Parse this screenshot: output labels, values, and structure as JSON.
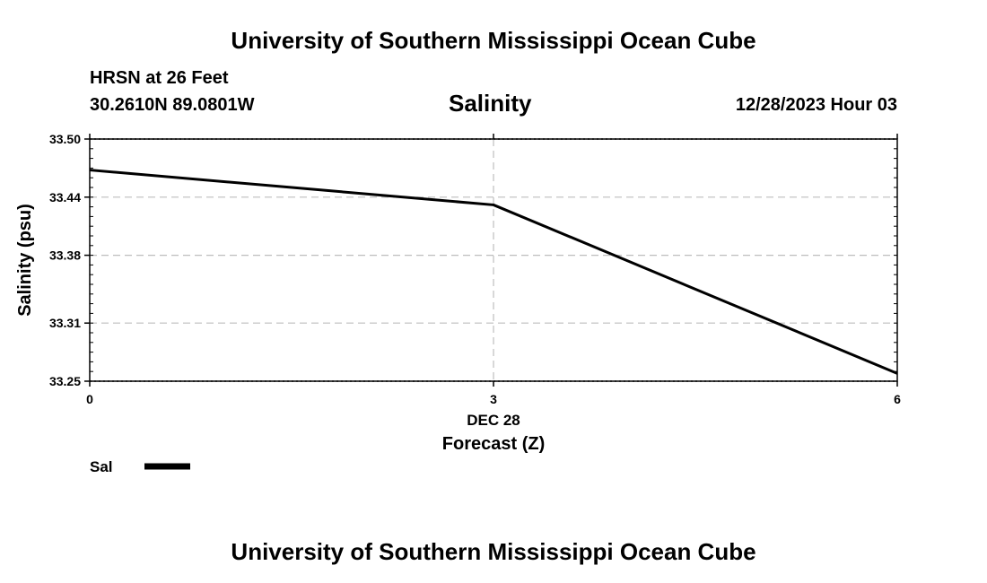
{
  "header": {
    "title": "University of Southern Mississippi Ocean Cube",
    "station": "HRSN at 26 Feet",
    "coords": "30.2610N  89.0801W",
    "datetime": "12/28/2023 Hour 03"
  },
  "footer": {
    "title": "University of Southern Mississippi Ocean Cube"
  },
  "chart_data": {
    "type": "line",
    "title": "Salinity",
    "xlabel": "Forecast (Z)",
    "x_date_label": "DEC 28",
    "ylabel": "Salinity (psu)",
    "xlim": [
      0,
      6
    ],
    "ylim": [
      33.25,
      33.5
    ],
    "x_ticks": [
      0,
      3,
      6
    ],
    "x_tick_labels": [
      "0",
      "3",
      "6"
    ],
    "y_ticks": [
      33.25,
      33.31,
      33.38,
      33.44,
      33.5
    ],
    "y_tick_labels": [
      "33.25",
      "33.31",
      "33.38",
      "33.44",
      "33.50"
    ],
    "grid": true,
    "legend_position": "bottom-left",
    "series": [
      {
        "name": "Sal",
        "color": "#000000",
        "x": [
          0,
          3,
          6
        ],
        "y": [
          33.468,
          33.432,
          33.258
        ]
      }
    ]
  }
}
